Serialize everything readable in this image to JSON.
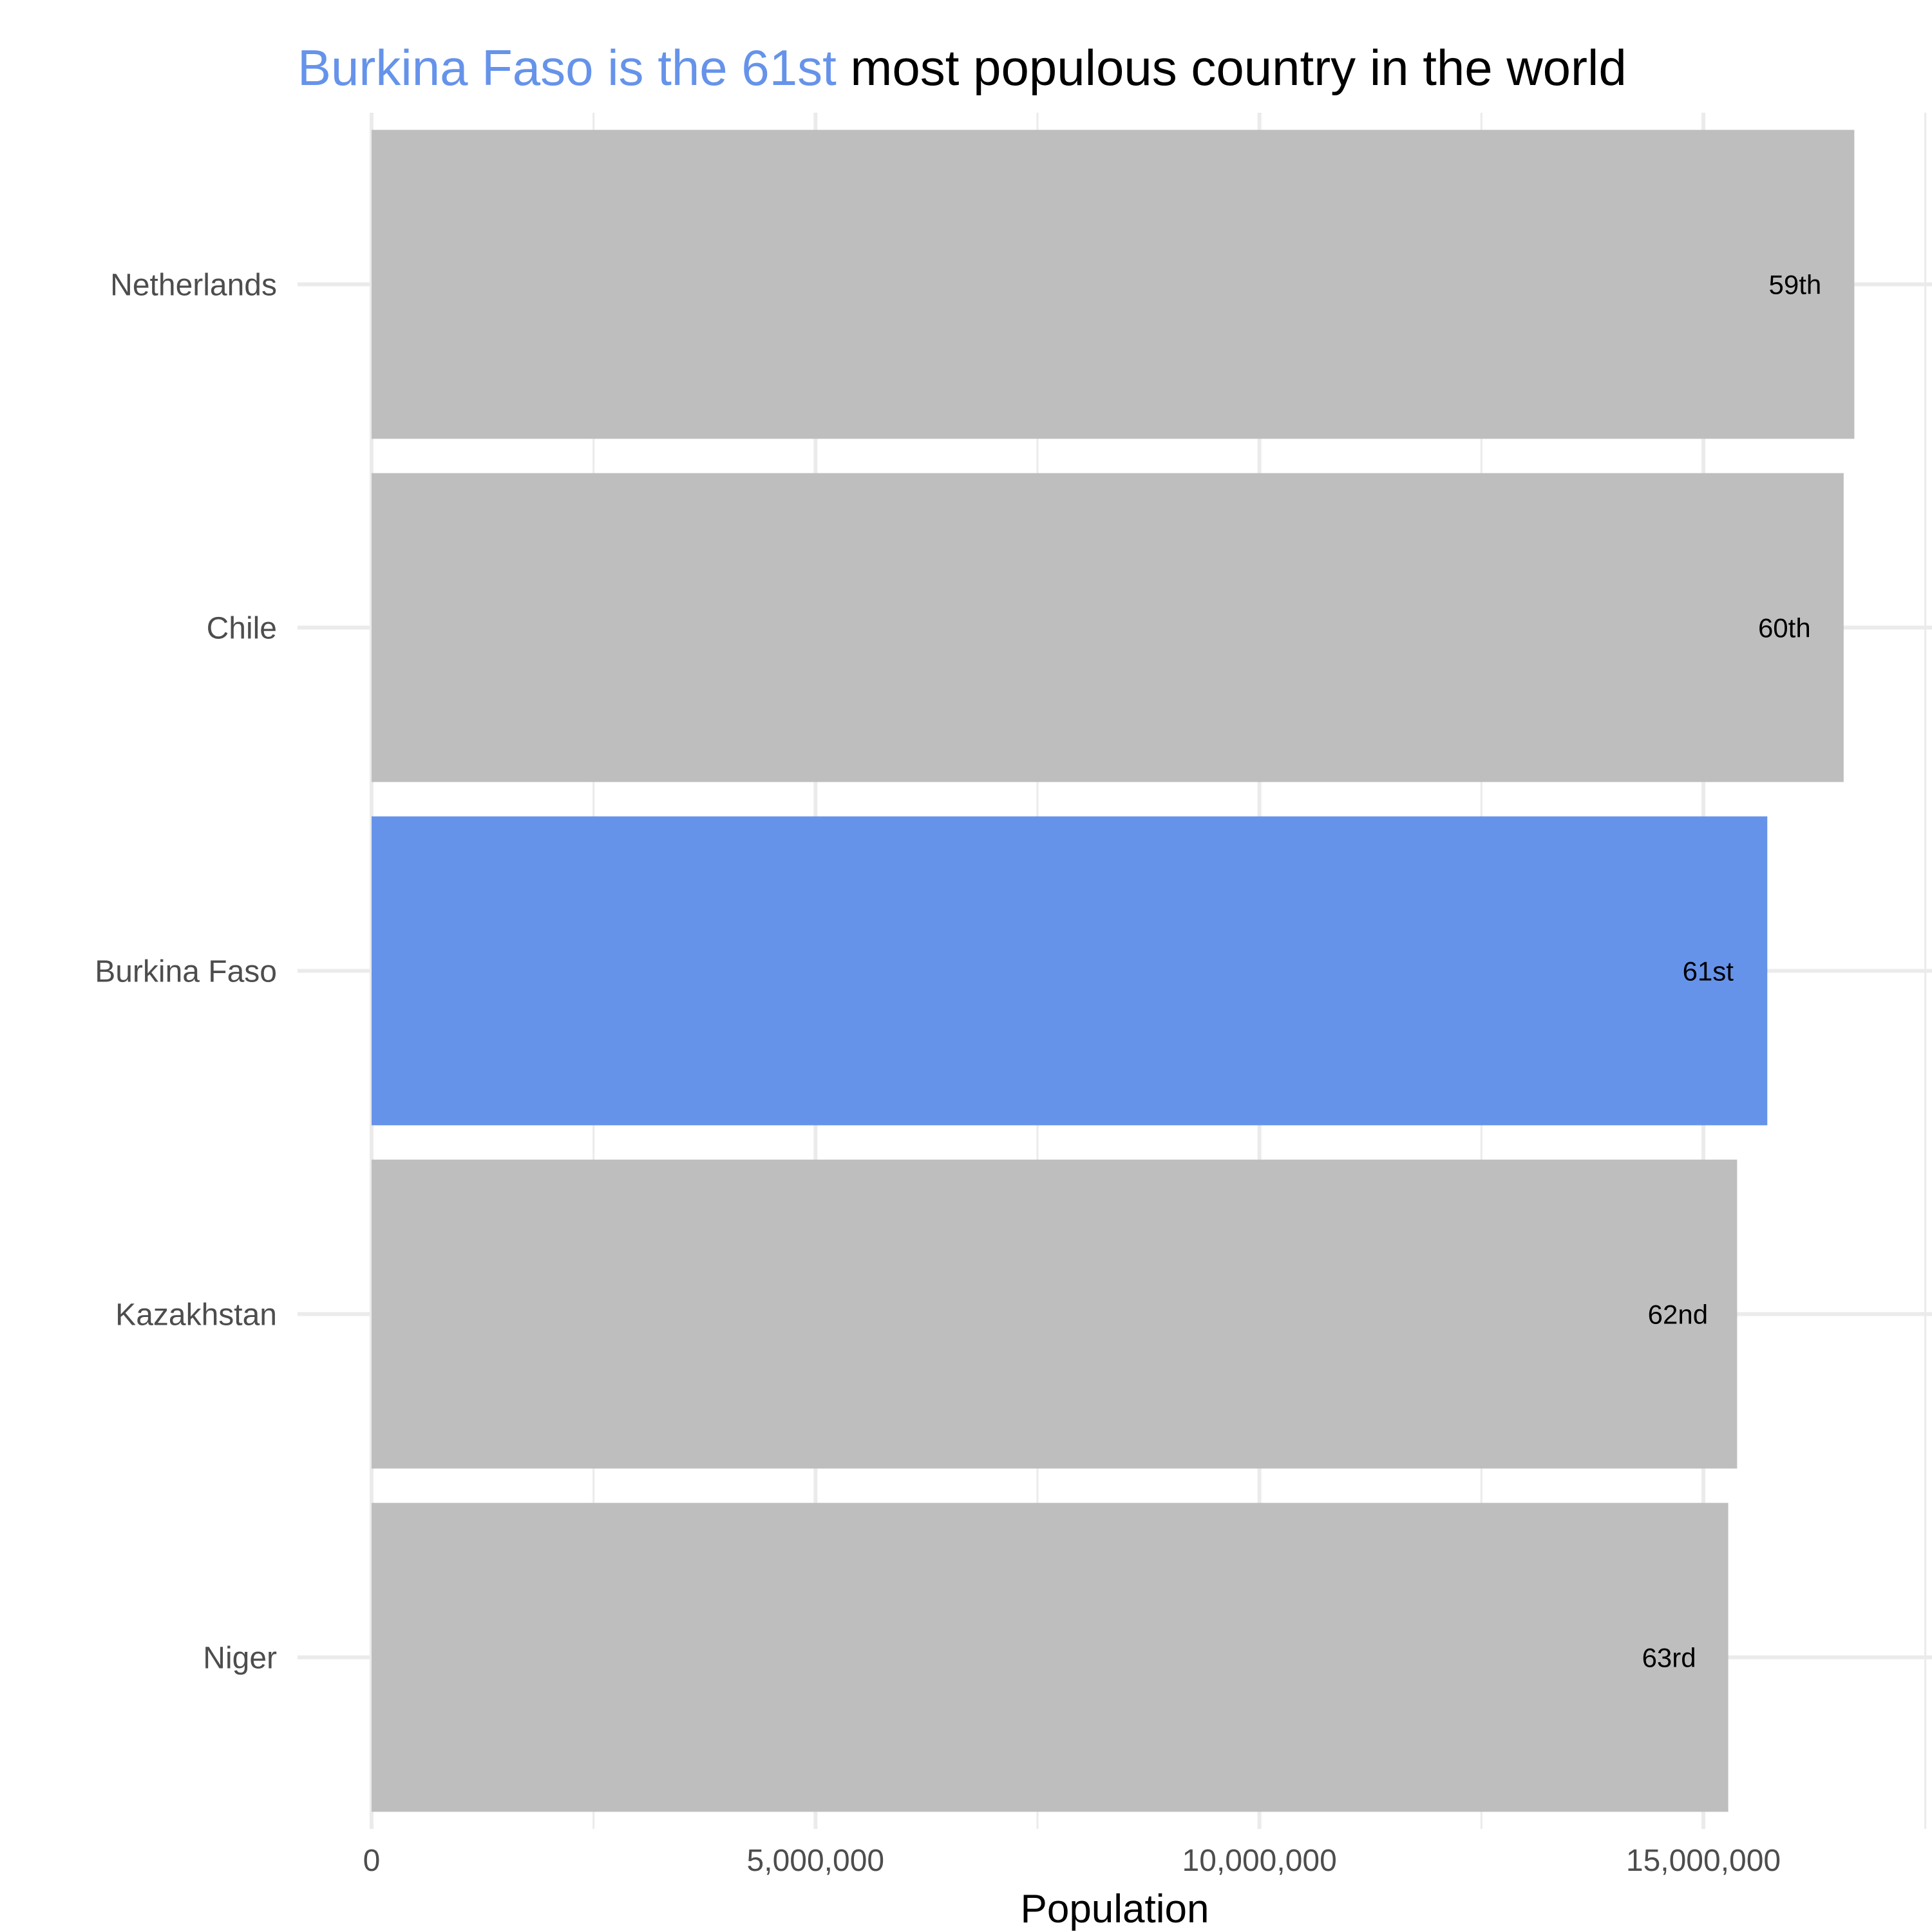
{
  "chart_data": {
    "type": "bar",
    "orientation": "horizontal",
    "title_highlight": "Burkina Faso is the 61st",
    "title_rest": " most populous country in the world",
    "xlabel": "Population",
    "ylabel": "",
    "xlim": [
      0,
      17500000
    ],
    "x_ticks": [
      0,
      5000000,
      10000000,
      15000000
    ],
    "x_tick_labels": [
      "0",
      "5,000,000",
      "10,000,000",
      "15,000,000"
    ],
    "x_minor_ticks": [
      2500000,
      7500000,
      12500000,
      17500000
    ],
    "grid": true,
    "categories": [
      "Netherlands",
      "Chile",
      "Burkina Faso",
      "Kazakhstan",
      "Niger"
    ],
    "values": [
      16700000,
      16580000,
      15720000,
      15380000,
      15280000
    ],
    "ranks": [
      "59th",
      "60th",
      "61st",
      "62nd",
      "63rd"
    ],
    "highlight_index": 2,
    "colors": {
      "highlight": "#6693EA",
      "bar": "#BEBEBE",
      "grid": "#EBEBEB",
      "title_rest": "#000000"
    }
  }
}
